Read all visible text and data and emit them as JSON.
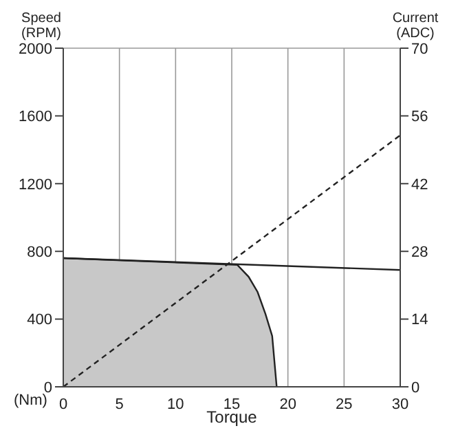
{
  "chart_data": {
    "type": "line",
    "xlabel": "Torque",
    "ylabel": "Speed\n(RPM)",
    "y2label": "Current\n(ADC)",
    "annotations": [
      "(Nm)"
    ],
    "xlim": [
      0,
      30
    ],
    "xticks": [
      0,
      5,
      10,
      15,
      20,
      25,
      30
    ],
    "ylim": [
      0,
      2000
    ],
    "yticks": [
      0,
      400,
      800,
      1200,
      1600,
      2000
    ],
    "y2lim": [
      0,
      70
    ],
    "y2ticks": [
      0,
      14,
      28,
      42,
      56,
      70
    ],
    "grid": true,
    "marker": "none",
    "series": [
      {
        "type": "area",
        "color": "#c8c8c8",
        "x": [
          0,
          15.5,
          16.5,
          17.3,
          18,
          18.6,
          18.8,
          19
        ],
        "values": [
          760,
          720,
          650,
          560,
          430,
          300,
          150,
          0
        ]
      },
      {
        "color": "#222222",
        "x": [
          0,
          30
        ],
        "values": [
          760,
          690
        ]
      },
      {
        "color": "#222222",
        "line_style": "dashed",
        "axis": "y2",
        "x": [
          0,
          30
        ],
        "values": [
          0,
          52
        ]
      }
    ]
  }
}
